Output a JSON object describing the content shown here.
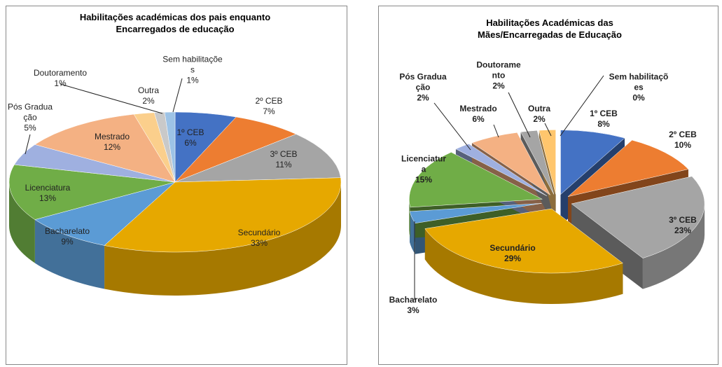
{
  "chart_data": [
    {
      "type": "pie3d",
      "title": "Habilitações académicas dos pais enquanto Encarregados de educação",
      "categories": [
        "1º CEB",
        "2º CEB",
        "3º CEB",
        "Secundário",
        "Bacharelato",
        "Licenciatura",
        "Pós Graduação",
        "Mestrado",
        "Outra",
        "Doutoramento",
        "Sem habilitações"
      ],
      "values": [
        6,
        7,
        11,
        33,
        9,
        13,
        5,
        12,
        2,
        1,
        1
      ],
      "value_labels": [
        "6%",
        "7%",
        "11%",
        "33%",
        "9%",
        "13%",
        "5%",
        "12%",
        "2%",
        "1%",
        "1%"
      ],
      "colors": [
        "#4472c4",
        "#ed7d31",
        "#a5a5a5",
        "#e6a800",
        "#5b9bd5",
        "#70ad47",
        "#9fb0e0",
        "#f4b183",
        "#fbcf8c",
        "#c9c9c9",
        "#9dc3e6"
      ]
    },
    {
      "type": "pie3d",
      "title": "Habilitações Académicas das Mães/Encarregadas de Educação",
      "categories": [
        "1º CEB",
        "2º CEB",
        "3º CEB",
        "Secundário",
        "Bacharelato",
        "Licenciatura",
        "Pós Graduação",
        "Mestrado",
        "Doutoramento",
        "Outra",
        "Sem habilitações"
      ],
      "values": [
        8,
        10,
        23,
        29,
        3,
        15,
        2,
        6,
        2,
        2,
        0
      ],
      "value_labels": [
        "8%",
        "10%",
        "23%",
        "29%",
        "3%",
        "15%",
        "2%",
        "6%",
        "2%",
        "2%",
        "0%"
      ],
      "colors": [
        "#4472c4",
        "#ed7d31",
        "#a5a5a5",
        "#e6a800",
        "#5b9bd5",
        "#70ad47",
        "#9fb0e0",
        "#f4b183",
        "#a5a5a5",
        "#ffc66d",
        "#9dc3e6"
      ]
    }
  ]
}
